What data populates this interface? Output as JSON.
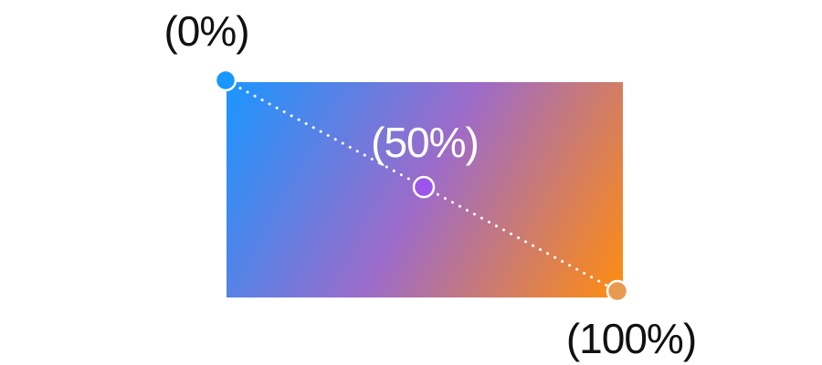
{
  "gradient": {
    "stops": [
      {
        "label": "(0%)",
        "offset": 0,
        "color": "#1a96ff"
      },
      {
        "label": "(50%)",
        "offset": 50,
        "color": "#9d6bc9"
      },
      {
        "label": "(100%)",
        "offset": 100,
        "color": "#ff8c0f"
      }
    ]
  },
  "colors": {
    "label_dark": "#111111",
    "label_light": "#ffffff",
    "handle_stroke": "#ffffff",
    "handle_start_fill": "#1a96ff",
    "handle_mid_fill": "#9b55e8",
    "handle_end_fill": "#e89a50",
    "guide_line": "#ffffff"
  }
}
